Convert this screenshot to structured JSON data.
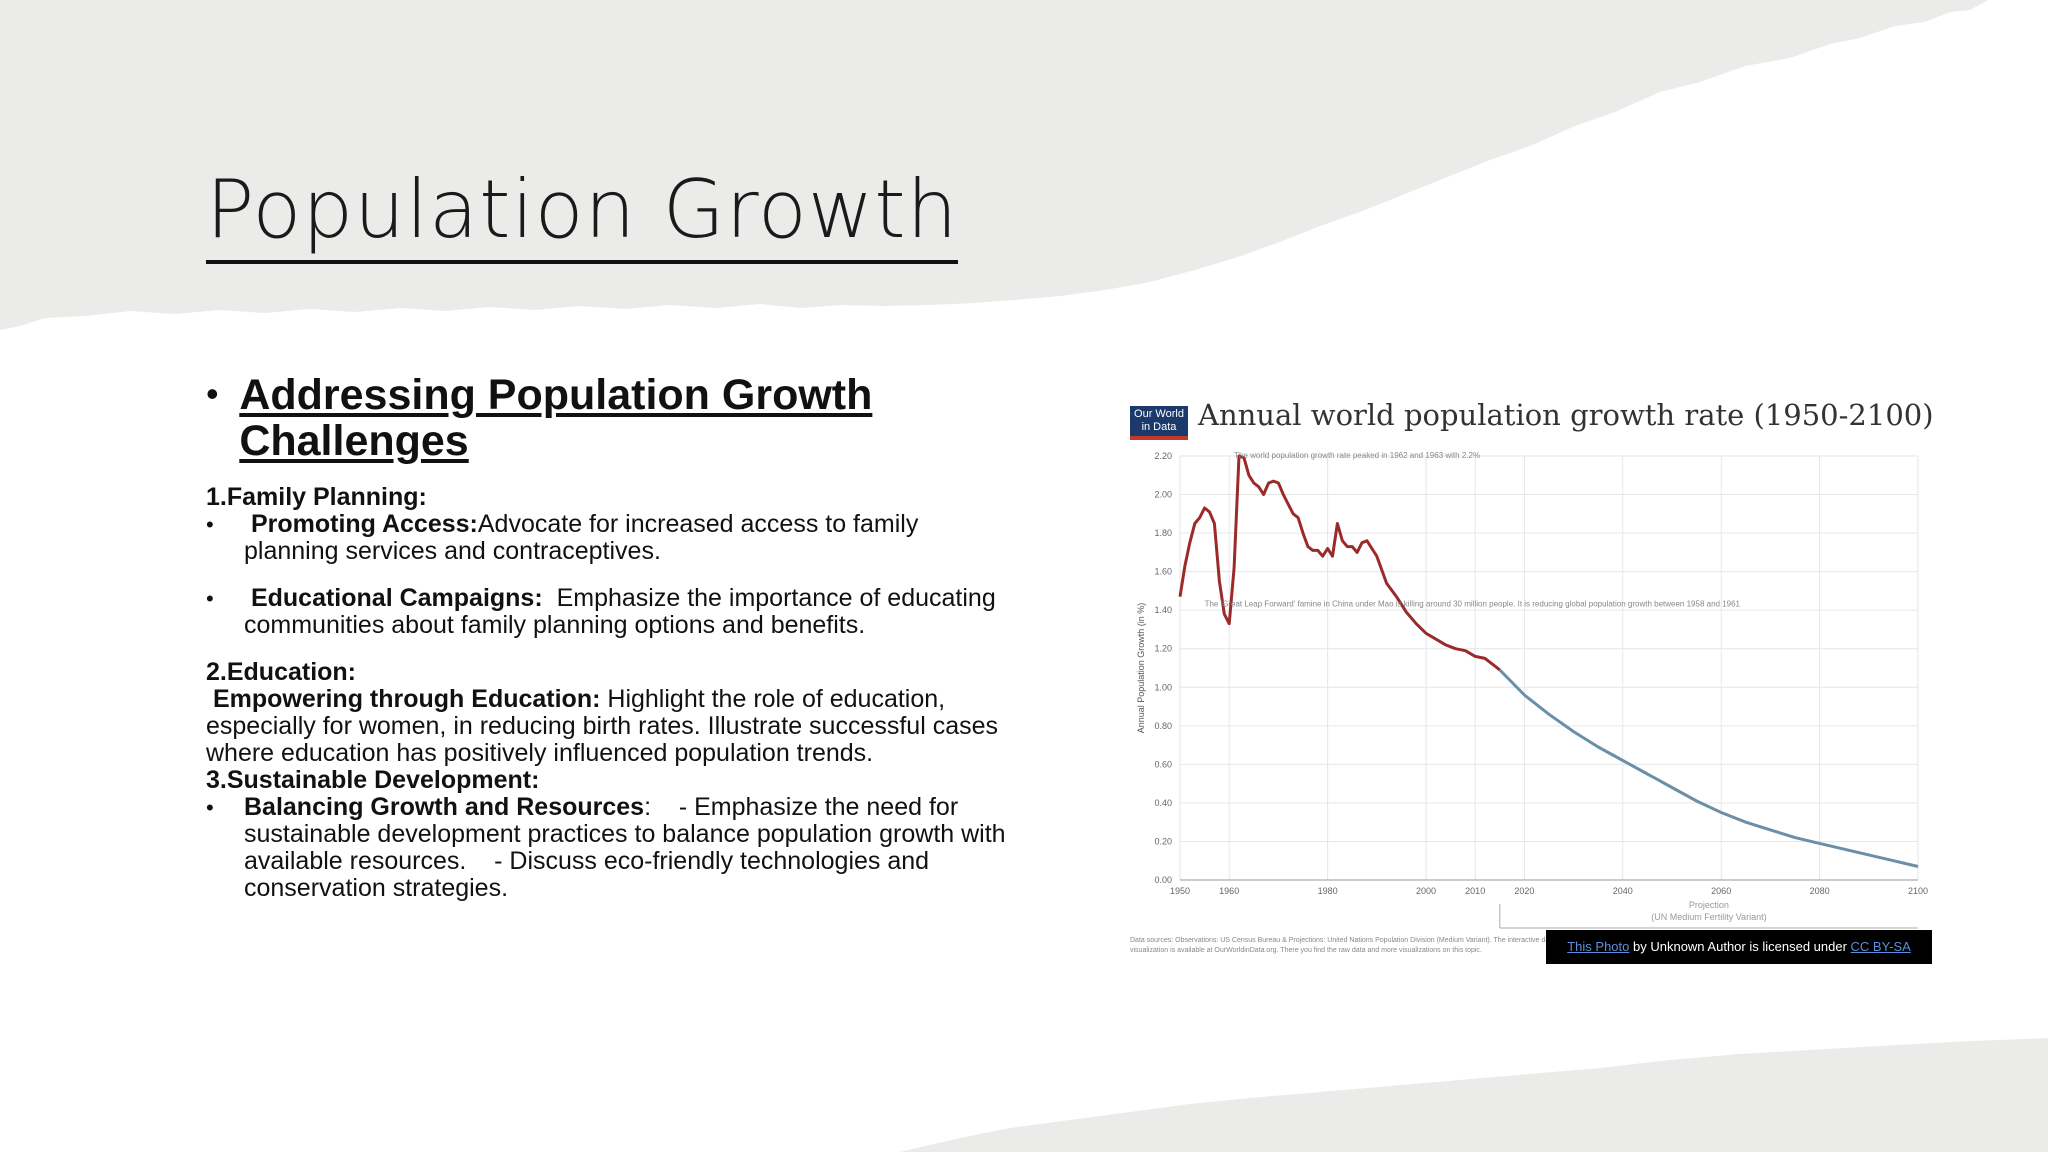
{
  "slide": {
    "title": "Population Growth",
    "heading": "Addressing Population Growth Challenges",
    "sections": [
      {
        "label": "1.Family Planning:"
      },
      {
        "label": "2.Education:"
      },
      {
        "label": "3.Sustainable Development:"
      }
    ],
    "bullets": {
      "promoting_bold": "Promoting Access:",
      "promoting_text": "Advocate for increased access to family planning services and contraceptives.",
      "campaigns_bold": "Educational Campaigns:",
      "campaigns_text": "Emphasize the importance of educating communities about family planning options and benefits.",
      "education_bold": "Empowering through Education:",
      "education_text": "Highlight the role of education, especially for women, in reducing birth rates. Illustrate successful cases where education has positively influenced population trends.",
      "balancing_bold": "Balancing Growth and Resources",
      "balancing_text": ":    - Emphasize the need for sustainable development practices to balance population growth with available resources.    - Discuss eco-friendly technologies and conservation strategies."
    },
    "bullet_glyph": "•"
  },
  "chart": {
    "logo": "Our World in Data",
    "title": "Annual world population growth rate (1950-2100)",
    "ylabel": "Annual Population Growth (in %)",
    "annotation_peak": "The world population growth rate peaked in 1962 and 1963 with 2.2%",
    "annotation_leap": "The 'Great Leap Forward' famine in China under Mao is killing around 30 million people. It is reducing global population growth between 1958 and 1961",
    "projection_label": "Projection",
    "projection_sub": "(UN Medium Fertility Variant)",
    "footer": "Data sources: Observations: US Census Bureau & Projections: United Nations Population Division (Medium Variant). The interactive data visualization is available at OurWorldinData.org. There you find the raw data and more visualizations on this topic.",
    "caption_link": "This Photo",
    "caption_mid": " by Unknown Author is licensed under ",
    "caption_license": "CC BY-SA"
  },
  "chart_data": {
    "type": "line",
    "title": "Annual world population growth rate (1950-2100)",
    "xlabel": "",
    "ylabel": "Annual Population Growth (in %)",
    "xlim": [
      1950,
      2100
    ],
    "ylim": [
      0,
      2.2
    ],
    "x_ticks": [
      "1950",
      "1960",
      "1980",
      "2000",
      "2010",
      "2020",
      "2040",
      "2060",
      "2080",
      "2100"
    ],
    "y_ticks": [
      "0.00",
      "0.20",
      "0.40",
      "0.60",
      "0.80",
      "1.00",
      "1.20",
      "1.40",
      "1.60",
      "1.80",
      "2.00",
      "2.20"
    ],
    "grid": true,
    "series": [
      {
        "name": "Observations",
        "color": "#9b2a2a",
        "x": [
          1950,
          1951,
          1952,
          1953,
          1954,
          1955,
          1956,
          1957,
          1958,
          1959,
          1960,
          1961,
          1962,
          1963,
          1964,
          1965,
          1966,
          1967,
          1968,
          1969,
          1970,
          1971,
          1972,
          1973,
          1974,
          1975,
          1976,
          1977,
          1978,
          1979,
          1980,
          1981,
          1982,
          1983,
          1984,
          1985,
          1986,
          1987,
          1988,
          1989,
          1990,
          1992,
          1994,
          1996,
          1998,
          2000,
          2002,
          2004,
          2006,
          2008,
          2010,
          2012,
          2014,
          2015
        ],
        "values": [
          1.47,
          1.63,
          1.75,
          1.85,
          1.88,
          1.93,
          1.91,
          1.85,
          1.55,
          1.38,
          1.33,
          1.62,
          2.2,
          2.19,
          2.1,
          2.06,
          2.04,
          2.0,
          2.06,
          2.07,
          2.06,
          2.0,
          1.95,
          1.9,
          1.88,
          1.8,
          1.73,
          1.71,
          1.71,
          1.68,
          1.72,
          1.68,
          1.85,
          1.76,
          1.73,
          1.73,
          1.7,
          1.75,
          1.76,
          1.72,
          1.68,
          1.54,
          1.47,
          1.39,
          1.33,
          1.28,
          1.25,
          1.22,
          1.2,
          1.19,
          1.16,
          1.15,
          1.11,
          1.09
        ]
      },
      {
        "name": "Projection",
        "color": "#6b8fa9",
        "x": [
          2015,
          2020,
          2025,
          2030,
          2035,
          2040,
          2045,
          2050,
          2055,
          2060,
          2065,
          2070,
          2075,
          2080,
          2085,
          2090,
          2095,
          2100
        ],
        "values": [
          1.09,
          0.96,
          0.86,
          0.77,
          0.69,
          0.62,
          0.55,
          0.48,
          0.41,
          0.35,
          0.3,
          0.26,
          0.22,
          0.19,
          0.16,
          0.13,
          0.1,
          0.07
        ]
      }
    ]
  }
}
